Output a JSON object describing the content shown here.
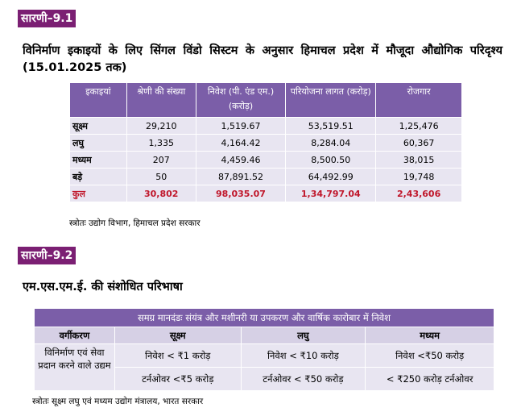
{
  "table1": {
    "tag": "सारणी–9.1",
    "title": "विनिर्माण इकाइयों के लिए सिंगल विंडो सिस्टम के अनुसार हिमाचल प्रदेश में मौजूदा औद्योगिक परिदृश्य (15.01.2025 तक)",
    "headers": [
      "इकाइयां",
      "श्रेणी की संख्या",
      "निवेश (पी. एंड एम.) (करोड़)",
      "परियोजना लागत (करोड़)",
      "रोजगार"
    ],
    "rows": [
      [
        "सूक्ष्म",
        "29,210",
        "1,519.67",
        "53,519.51",
        "1,25,476"
      ],
      [
        "लघु",
        "1,335",
        "4,164.42",
        "8,284.04",
        "60,367"
      ],
      [
        "मध्यम",
        "207",
        "4,459.46",
        "8,500.50",
        "38,015"
      ],
      [
        "बड़े",
        "50",
        "87,891.52",
        "64,492.99",
        "19,748"
      ],
      [
        "कुल",
        "30,802",
        "98,035.07",
        "1,34,797.04",
        "2,43,606"
      ]
    ],
    "source": "स्त्रोतः उद्योग विभाग, हिमाचल प्रदेश सरकार"
  },
  "table2": {
    "tag": "सारणी–9.2",
    "title": "एम.एस.एम.ई. की संशोधित परिभाषा",
    "banner": "समग्र मानदंडः संयंत्र और मशीनरी या उपकरण और वार्षिक कारोबार में निवेश",
    "headers": [
      "वर्गीकरण",
      "सूक्ष्म",
      "लघु",
      "मध्यम"
    ],
    "category": "विनिर्माण एवं सेवा प्रदान करने वाले उद्यम",
    "investment": [
      "निवेश < ₹1 करोड़",
      "निवेश < ₹10 करोड़",
      "निवेश <₹50 करोड़"
    ],
    "turnover": [
      "टर्नओवर <₹5 करोड़",
      "टर्नओवर < ₹50 करोड़",
      "< ₹250 करोड़ टर्नओवर"
    ],
    "source": "स्त्रोतः सूक्ष्म लघु एवं मध्यम उद्योग मंत्रालय, भारत सरकार"
  }
}
